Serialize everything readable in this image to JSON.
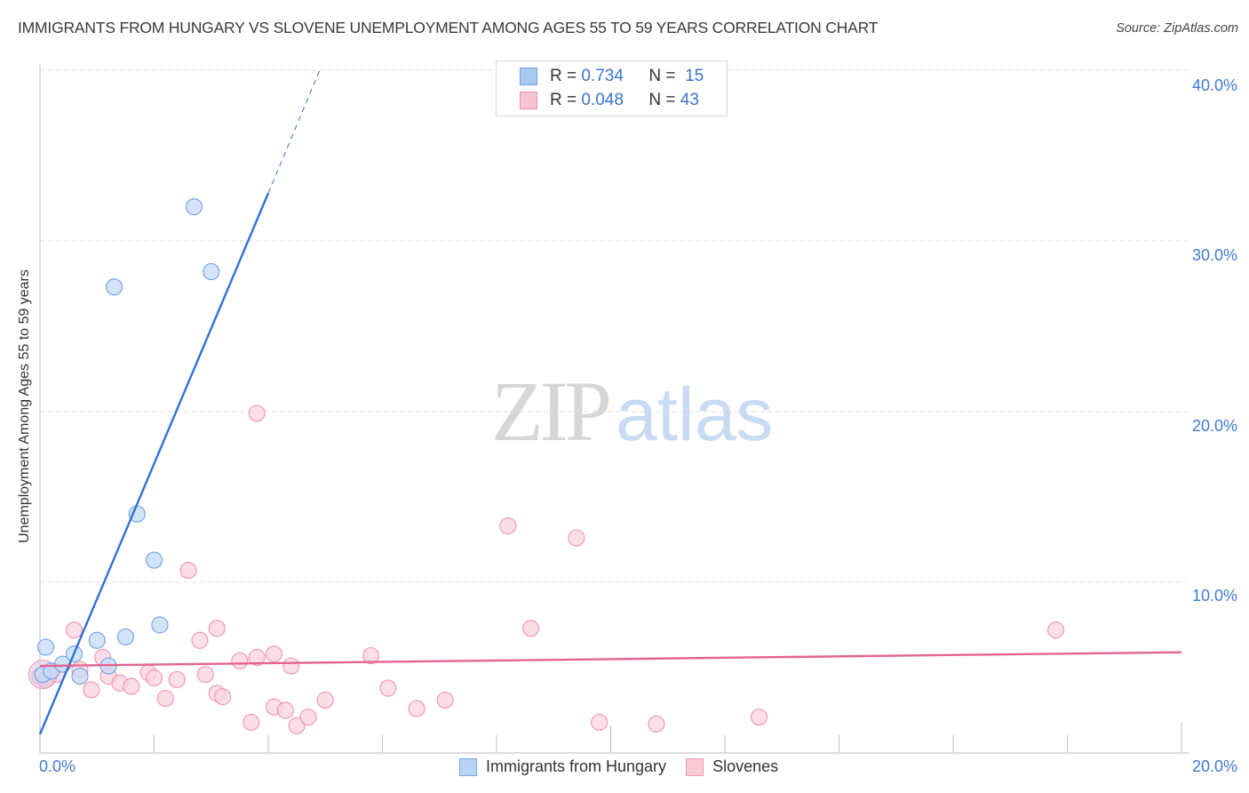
{
  "header": {
    "title": "IMMIGRANTS FROM HUNGARY VS SLOVENE UNEMPLOYMENT AMONG AGES 55 TO 59 YEARS CORRELATION CHART",
    "source": "Source: ZipAtlas.com"
  },
  "watermark": {
    "zip": "ZIP",
    "atlas": "atlas"
  },
  "legend": {
    "rows": [
      {
        "r_label": "R =",
        "r_value": "0.734",
        "n_label": "N =",
        "n_value": "15",
        "color": "#a8c8f0",
        "border": "#6f9fe0"
      },
      {
        "r_label": "R =",
        "r_value": "0.048",
        "n_label": "N =",
        "n_value": "43",
        "color": "#f9c3d3",
        "border": "#ea8fab"
      }
    ]
  },
  "bottom_legend": [
    {
      "label": "Immigrants from Hungary",
      "color": "#b9d3f4",
      "border": "#7ba6e0"
    },
    {
      "label": "Slovenes",
      "color": "#fbcad8",
      "border": "#ec9ab3"
    }
  ],
  "axes": {
    "y_label": "Unemployment Among Ages 55 to 59 years",
    "y_ticks": [
      "40.0%",
      "30.0%",
      "20.0%",
      "10.0%"
    ],
    "x_ticks": [
      "0.0%",
      "20.0%"
    ]
  },
  "colors": {
    "blue_line": "#2f72d4",
    "pink_line": "#e5638f",
    "blue_fill": "#c5dbf6",
    "blue_stroke": "#7aa4e2",
    "pink_fill": "#fbd3df",
    "pink_stroke": "#ee9ab4",
    "grid": "#dddddd"
  },
  "chart_data": {
    "type": "scatter",
    "title": "IMMIGRANTS FROM HUNGARY VS SLOVENE UNEMPLOYMENT AMONG AGES 55 TO 59 YEARS CORRELATION CHART",
    "xlabel": "",
    "ylabel": "Unemployment Among Ages 55 to 59 years",
    "xlim": [
      0,
      20
    ],
    "ylim": [
      0,
      40
    ],
    "x_tick_labels": [
      "0.0%",
      "20.0%"
    ],
    "y_tick_labels": [
      "10.0%",
      "20.0%",
      "30.0%",
      "40.0%"
    ],
    "grid": true,
    "legend_position": "top-center and bottom",
    "series": [
      {
        "name": "Immigrants from Hungary",
        "R": 0.734,
        "N": 15,
        "points": [
          [
            0.05,
            4.6
          ],
          [
            0.2,
            4.8
          ],
          [
            0.4,
            5.2
          ],
          [
            0.6,
            5.8
          ],
          [
            0.7,
            4.5
          ],
          [
            1.0,
            6.6
          ],
          [
            1.2,
            5.1
          ],
          [
            1.5,
            6.8
          ],
          [
            1.7,
            14.0
          ],
          [
            2.0,
            11.3
          ],
          [
            2.1,
            7.5
          ],
          [
            1.3,
            27.3
          ],
          [
            2.7,
            32.0
          ],
          [
            3.0,
            28.2
          ],
          [
            0.1,
            6.2
          ]
        ],
        "trend": {
          "x0": 0.0,
          "y0": 1.1,
          "x1": 4.0,
          "y1": 32.8,
          "dashed_to": [
            4.9,
            40.0
          ]
        }
      },
      {
        "name": "Slovenes",
        "R": 0.048,
        "N": 43,
        "points": [
          [
            0.0,
            4.5
          ],
          [
            0.1,
            4.3
          ],
          [
            0.3,
            4.6
          ],
          [
            0.6,
            7.2
          ],
          [
            0.7,
            4.9
          ],
          [
            0.9,
            3.7
          ],
          [
            1.1,
            5.6
          ],
          [
            1.2,
            4.5
          ],
          [
            1.4,
            4.1
          ],
          [
            1.6,
            3.9
          ],
          [
            1.9,
            4.7
          ],
          [
            2.0,
            4.4
          ],
          [
            2.2,
            3.2
          ],
          [
            2.4,
            4.3
          ],
          [
            2.6,
            10.7
          ],
          [
            2.8,
            6.6
          ],
          [
            2.9,
            4.6
          ],
          [
            3.1,
            7.3
          ],
          [
            3.1,
            3.5
          ],
          [
            3.2,
            3.3
          ],
          [
            3.5,
            5.4
          ],
          [
            3.8,
            5.6
          ],
          [
            3.7,
            1.8
          ],
          [
            4.1,
            5.8
          ],
          [
            4.1,
            2.7
          ],
          [
            4.3,
            2.5
          ],
          [
            4.4,
            5.1
          ],
          [
            4.5,
            1.6
          ],
          [
            4.7,
            2.1
          ],
          [
            5.0,
            3.1
          ],
          [
            3.8,
            19.9
          ],
          [
            5.8,
            5.7
          ],
          [
            6.1,
            3.8
          ],
          [
            6.6,
            2.6
          ],
          [
            7.1,
            3.1
          ],
          [
            8.2,
            13.3
          ],
          [
            8.6,
            7.3
          ],
          [
            9.4,
            12.6
          ],
          [
            9.8,
            1.8
          ],
          [
            10.8,
            1.7
          ],
          [
            12.6,
            2.1
          ],
          [
            17.8,
            7.2
          ],
          [
            0.2,
            4.8
          ]
        ],
        "trend": {
          "x0": 0.0,
          "y0": 5.1,
          "x1": 20.0,
          "y1": 5.9
        }
      }
    ]
  }
}
